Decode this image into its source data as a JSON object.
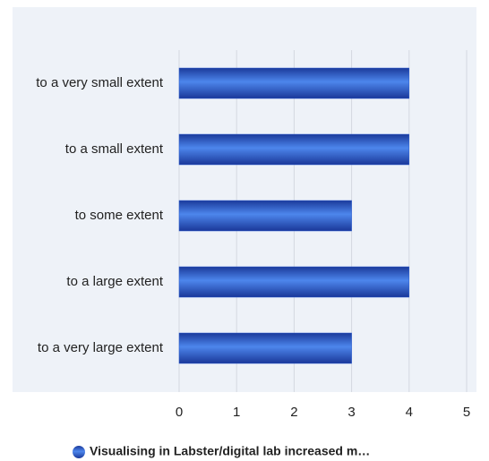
{
  "chart_data": {
    "type": "bar",
    "orientation": "horizontal",
    "categories": [
      "to a very small extent",
      "to a small extent",
      "to some extent",
      "to a large extent",
      "to a very large extent"
    ],
    "series": [
      {
        "name": "Visualising in Labster/digital lab increased m…",
        "color": "#2a5bd0",
        "values": [
          4,
          4,
          3,
          4,
          3
        ]
      }
    ],
    "xlim": [
      0,
      5
    ],
    "xticks": [
      0,
      1,
      2,
      3,
      4,
      5
    ],
    "grid": true,
    "legend": "bottom"
  }
}
